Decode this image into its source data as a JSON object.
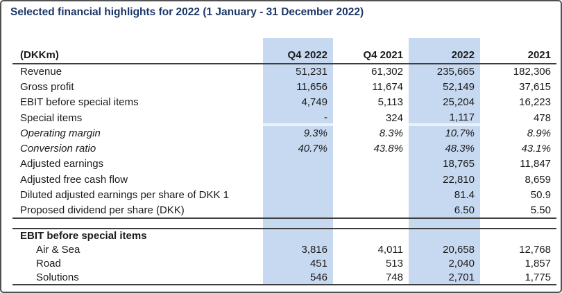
{
  "title": "Selected financial highlights for 2022 (1 January - 31 December 2022)",
  "colors": {
    "title_navy": "#1b3667",
    "highlight_blue": "#c7d9f1",
    "rule_dark": "#3d3d3d",
    "panel_border": "#515151"
  },
  "table": {
    "unit_label": "(DKKm)",
    "columns": [
      "Q4 2022",
      "Q4 2021",
      "2022",
      "2021"
    ],
    "highlighted_columns": [
      "Q4 2022",
      "2022"
    ],
    "rows": [
      {
        "label": "Revenue",
        "values": [
          "51,231",
          "61,302",
          "235,665",
          "182,306"
        ]
      },
      {
        "label": "Gross profit",
        "values": [
          "11,656",
          "11,674",
          "52,149",
          "37,615"
        ]
      },
      {
        "label": "EBIT before special items",
        "values": [
          "4,749",
          "5,113",
          "25,204",
          "16,223"
        ]
      },
      {
        "label": "Special items",
        "values": [
          "-",
          "324",
          "1,117",
          "478"
        ],
        "rule_after": "light"
      },
      {
        "label": "Operating margin",
        "values": [
          "9.3%",
          "8.3%",
          "10.7%",
          "8.9%"
        ],
        "italic": true
      },
      {
        "label": "Conversion ratio",
        "values": [
          "40.7%",
          "43.8%",
          "48.3%",
          "43.1%"
        ],
        "italic": true
      },
      {
        "label": "Adjusted earnings",
        "values": [
          "",
          "",
          "18,765",
          "11,847"
        ]
      },
      {
        "label": "Adjusted free cash flow",
        "values": [
          "",
          "",
          "22,810",
          "8,659"
        ]
      },
      {
        "label": "Diluted adjusted earnings per share of DKK 1",
        "values": [
          "",
          "",
          "81.4",
          "50.9"
        ]
      },
      {
        "label": "Proposed dividend per share (DKK)",
        "values": [
          "",
          "",
          "6.50",
          "5.50"
        ],
        "rule_after": "dark"
      }
    ],
    "section": {
      "header": "EBIT before special items",
      "rows": [
        {
          "label": "Air & Sea",
          "values": [
            "3,816",
            "4,011",
            "20,658",
            "12,768"
          ]
        },
        {
          "label": "Road",
          "values": [
            "451",
            "513",
            "2,040",
            "1,857"
          ]
        },
        {
          "label": "Solutions",
          "values": [
            "546",
            "748",
            "2,701",
            "1,775"
          ],
          "rule_after": "dark"
        }
      ]
    }
  }
}
